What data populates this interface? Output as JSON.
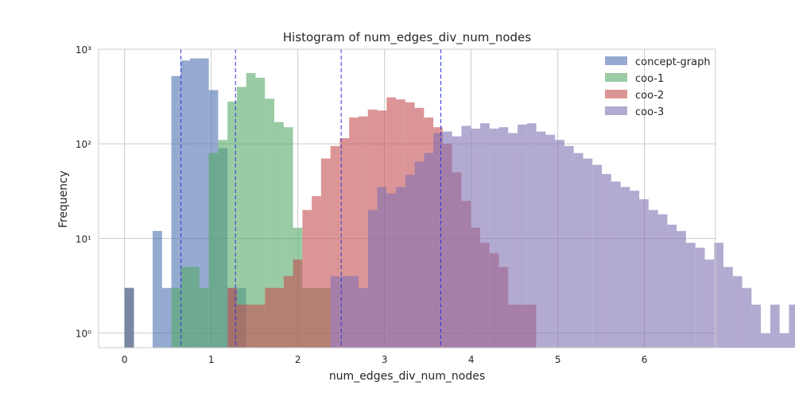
{
  "chart_data": {
    "type": "bar",
    "title": "Histogram of num_edges_div_num_nodes",
    "xlabel": "num_edges_div_num_nodes",
    "ylabel": "Frequency",
    "xlim": [
      -0.3,
      6.82
    ],
    "ylim": [
      0.7,
      1000
    ],
    "yscale": "log",
    "grid": true,
    "legend_position": "top-right",
    "x_ticks": [
      0,
      1,
      2,
      3,
      4,
      5,
      6
    ],
    "y_ticks": [
      {
        "value": 1,
        "label": "10⁰"
      },
      {
        "value": 10,
        "label": "10¹"
      },
      {
        "value": 100,
        "label": "10²"
      },
      {
        "value": 1000,
        "label": "10³"
      }
    ],
    "bin_width": 0.108,
    "series": [
      {
        "name": "concept-graph",
        "color": "#4c72b0",
        "start": 0,
        "counts": [
          3,
          0,
          0,
          12,
          3,
          520,
          760,
          800,
          800,
          370,
          90,
          3,
          3
        ],
        "mean_line": 0.65
      },
      {
        "name": "coo-1",
        "color": "#55a868",
        "start": 0,
        "counts": [
          3,
          0,
          0,
          0,
          0,
          3,
          5,
          5,
          3,
          80,
          110,
          280,
          400,
          560,
          500,
          300,
          170,
          150,
          13,
          3,
          3,
          3
        ],
        "mean_line": 1.28
      },
      {
        "name": "coo-2",
        "color": "#c44e52",
        "start": 0,
        "counts": [
          0,
          0,
          0,
          0,
          0,
          0,
          0,
          0,
          0,
          0,
          0,
          3,
          2,
          2,
          2,
          3,
          3,
          4,
          6,
          20,
          28,
          70,
          95,
          115,
          190,
          195,
          230,
          225,
          310,
          295,
          275,
          240,
          190,
          150,
          100,
          50,
          25,
          13,
          9,
          7,
          5,
          2,
          2,
          2
        ],
        "mean_line": 2.5
      },
      {
        "name": "coo-3",
        "color": "#8172b2",
        "start": 0,
        "counts": [
          3,
          0,
          0,
          0,
          0,
          0,
          0,
          0,
          0,
          0,
          0,
          0,
          0,
          0,
          0,
          0,
          0,
          0,
          0,
          0,
          0,
          0,
          4,
          4,
          4,
          3,
          20,
          35,
          30,
          35,
          47,
          65,
          80,
          130,
          135,
          120,
          155,
          145,
          165,
          145,
          150,
          130,
          160,
          165,
          135,
          125,
          110,
          95,
          80,
          70,
          60,
          48,
          40,
          35,
          32,
          26,
          20,
          18,
          14,
          12,
          9,
          8,
          6,
          9,
          5,
          4,
          3,
          2,
          1,
          2,
          1,
          2,
          2,
          3
        ],
        "mean_line": 3.65
      }
    ]
  }
}
